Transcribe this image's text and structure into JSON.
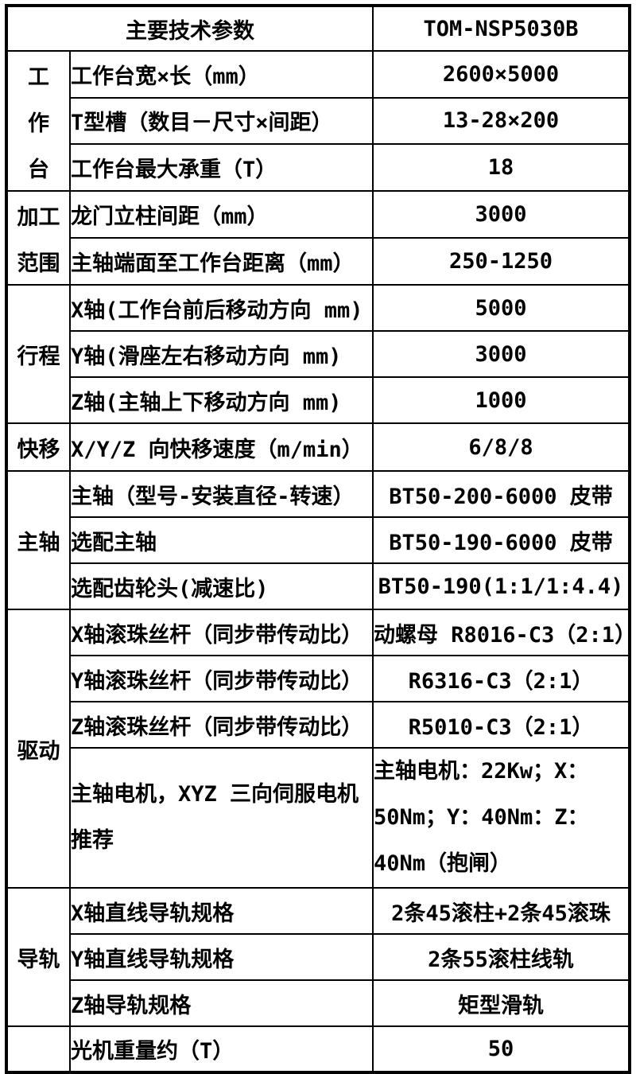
{
  "header": {
    "title": "主要技术参数",
    "model": "TOM-NSP5030B"
  },
  "groups": [
    {
      "name": "worktable",
      "lines": [
        "工",
        "作",
        "台"
      ]
    },
    {
      "name": "machining-range",
      "lines": [
        "加工",
        "范围"
      ]
    },
    {
      "name": "travel",
      "lines": [
        "行程"
      ]
    },
    {
      "name": "rapid-traverse",
      "lines": [
        "快移"
      ]
    },
    {
      "name": "spindle",
      "lines": [
        "主轴"
      ]
    },
    {
      "name": "drive",
      "lines": [
        "驱动"
      ]
    },
    {
      "name": "guideway",
      "lines": [
        "导轨"
      ]
    },
    {
      "name": "misc",
      "lines": []
    }
  ],
  "rows": [
    {
      "param": "工作台宽×长（mm）",
      "value": "2600×5000"
    },
    {
      "param": "T型槽（数目－尺寸×间距）",
      "value": "13-28×200"
    },
    {
      "param": "工作台最大承重（T）",
      "value": "18"
    },
    {
      "param": "龙门立柱间距（mm）",
      "value": "3000"
    },
    {
      "param": "主轴端面至工作台距离（mm）",
      "value": "250-1250"
    },
    {
      "param": "X轴(工作台前后移动方向 mm)",
      "value": "5000"
    },
    {
      "param": "Y轴(滑座左右移动方向 mm)",
      "value": "3000"
    },
    {
      "param": "Z轴(主轴上下移动方向 mm)",
      "value": "1000"
    },
    {
      "param": "X/Y/Z 向快移速度（m/min）",
      "value": "6/8/8"
    },
    {
      "param": "主轴（型号-安装直径-转速）",
      "value": "BT50-200-6000 皮带"
    },
    {
      "param": "选配主轴",
      "value": "BT50-190-6000 皮带"
    },
    {
      "param": "选配齿轮头(减速比)",
      "value": "BT50-190(1:1/1:4.4)"
    },
    {
      "param": "X轴滚珠丝杆（同步带传动比）",
      "value": "动螺母 R8016-C3（2:1）"
    },
    {
      "param": "Y轴滚珠丝杆（同步带传动比）",
      "value": "R6316-C3（2:1）"
    },
    {
      "param": "Z轴滚珠丝杆（同步带传动比）",
      "value": "R5010-C3（2:1）"
    },
    {
      "param": "主轴电机，XYZ 三向伺服电机推荐",
      "value": "主轴电机：22Kw；X：50Nm；Y：40Nm：Z：40Nm（抱闸）"
    },
    {
      "param": "X轴直线导轨规格",
      "value": "2条45滚柱+2条45滚珠"
    },
    {
      "param": "Y轴直线导轨规格",
      "value": "2条55滚柱线轨"
    },
    {
      "param": "Z轴导轨规格",
      "value": "矩型滑轨"
    },
    {
      "param": "光机重量约（T）",
      "value": "50"
    }
  ],
  "colors": {
    "border": "#000000",
    "text": "#000000",
    "background": "#ffffff"
  }
}
